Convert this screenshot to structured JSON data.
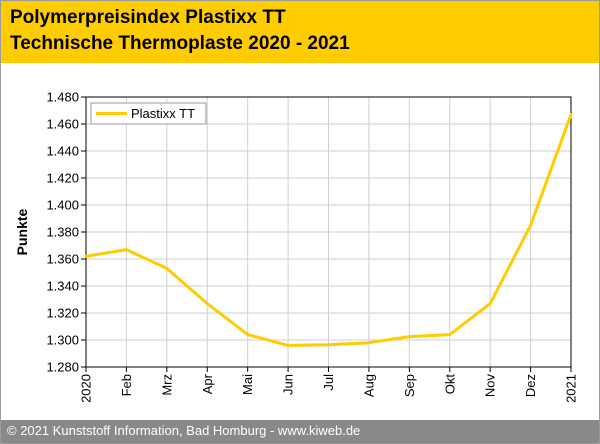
{
  "header": {
    "title_line1": "Polymerpreisindex Plastixx TT",
    "title_line2": "Technische Thermoplaste 2020 - 2021"
  },
  "footer": {
    "text": "© 2021 Kunststoff Information, Bad Homburg - www.kiweb.de"
  },
  "colors": {
    "header_bg": "#ffcc00",
    "line": "#ffcc00",
    "footer_bg": "#898989",
    "grid": "#cfcfcf"
  },
  "chart_data": {
    "type": "line",
    "title": "Polymerpreisindex Plastixx TT",
    "subtitle": "Technische Thermoplaste 2020 - 2021",
    "xlabel": "",
    "ylabel": "Punkte",
    "categories": [
      "2020",
      "Feb",
      "Mrz",
      "Apr",
      "Mai",
      "Jun",
      "Jul",
      "Aug",
      "Sep",
      "Okt",
      "Nov",
      "Dez",
      "2021"
    ],
    "series": [
      {
        "name": "Plastixx TT",
        "values": [
          1362,
          1367,
          1353,
          1327,
          1304,
          1296,
          1296.5,
          1298,
          1302.5,
          1304,
          1327,
          1385,
          1467
        ]
      }
    ],
    "yticks": [
      "1.280",
      "1.300",
      "1.320",
      "1.340",
      "1.360",
      "1.380",
      "1.400",
      "1.420",
      "1.440",
      "1.460",
      "1.480"
    ],
    "ylim": [
      1280,
      1480
    ],
    "grid": true,
    "legend_position": "top-left"
  }
}
